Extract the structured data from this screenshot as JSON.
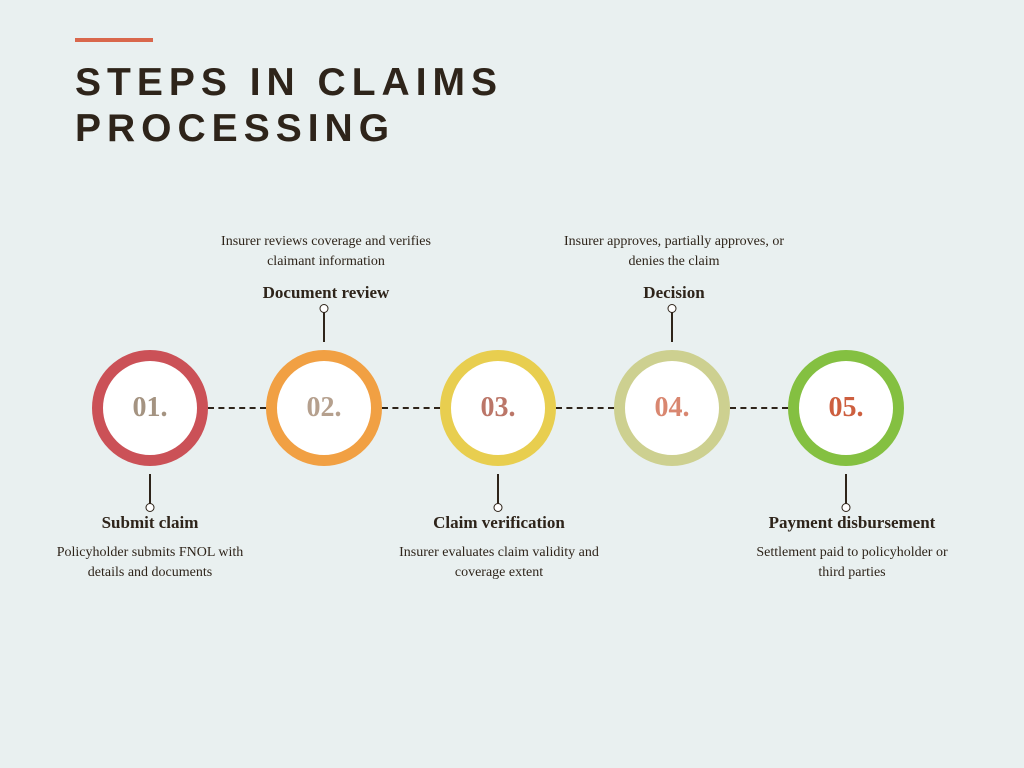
{
  "title": "STEPS IN CLAIMS\nPROCESSING",
  "accent_color": "#d9674c",
  "title_color": "#2e241a",
  "background_color": "#e9f0f0",
  "title_fontsize": 39,
  "title_letter_spacing": 6,
  "circle_diameter": 116,
  "circle_ring_width": 11,
  "connector_dash_color": "#2e241a",
  "number_fontsize": 28,
  "label_title_fontsize": 17,
  "label_desc_fontsize": 14,
  "steps": [
    {
      "number": "01.",
      "ring_color": "#cb5157",
      "number_color": "#a49381",
      "position": "below",
      "title": "Submit claim",
      "description": "Policyholder submits FNOL with details and documents"
    },
    {
      "number": "02.",
      "ring_color": "#f1a043",
      "number_color": "#b5a08e",
      "position": "above",
      "title": "Document review",
      "description": "Insurer reviews coverage and verifies claimant information"
    },
    {
      "number": "03.",
      "ring_color": "#e8ce4f",
      "number_color": "#bb7668",
      "position": "below",
      "title": "Claim verification",
      "description": "Insurer evaluates claim validity and coverage extent"
    },
    {
      "number": "04.",
      "ring_color": "#cdd090",
      "number_color": "#d98770",
      "position": "above",
      "title": "Decision",
      "description": "Insurer approves, partially approves, or denies the claim"
    },
    {
      "number": "05.",
      "ring_color": "#84c041",
      "number_color": "#cd5f3f",
      "position": "below",
      "title": "Payment disbursement",
      "description": "Settlement paid to policyholder or third parties"
    }
  ]
}
